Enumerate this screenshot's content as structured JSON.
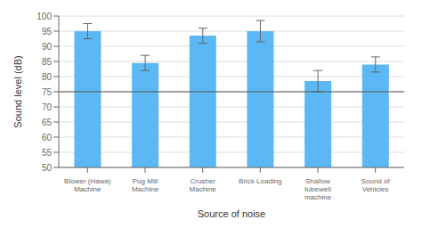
{
  "chart_data": {
    "type": "bar",
    "categories": [
      "Blower (Hawa)\nMachine",
      "Pug Mill\nMachine",
      "Crusher\nMachine",
      "Brick Loading",
      "Shallow\ntubewell\nmachine",
      "Sound of\nVehicles"
    ],
    "values": [
      95,
      84.5,
      93.5,
      95,
      78.5,
      84
    ],
    "errors": [
      2.5,
      2.5,
      2.5,
      3.5,
      3.5,
      2.5
    ],
    "color": "#5BB8F5",
    "reference_line": 75,
    "xlabel": "Source of noise",
    "ylabel": "Sound level (dB)",
    "ylim": [
      50,
      100
    ],
    "yticks": [
      50,
      55,
      60,
      65,
      70,
      75,
      80,
      85,
      90,
      95,
      100
    ],
    "grid": true
  }
}
